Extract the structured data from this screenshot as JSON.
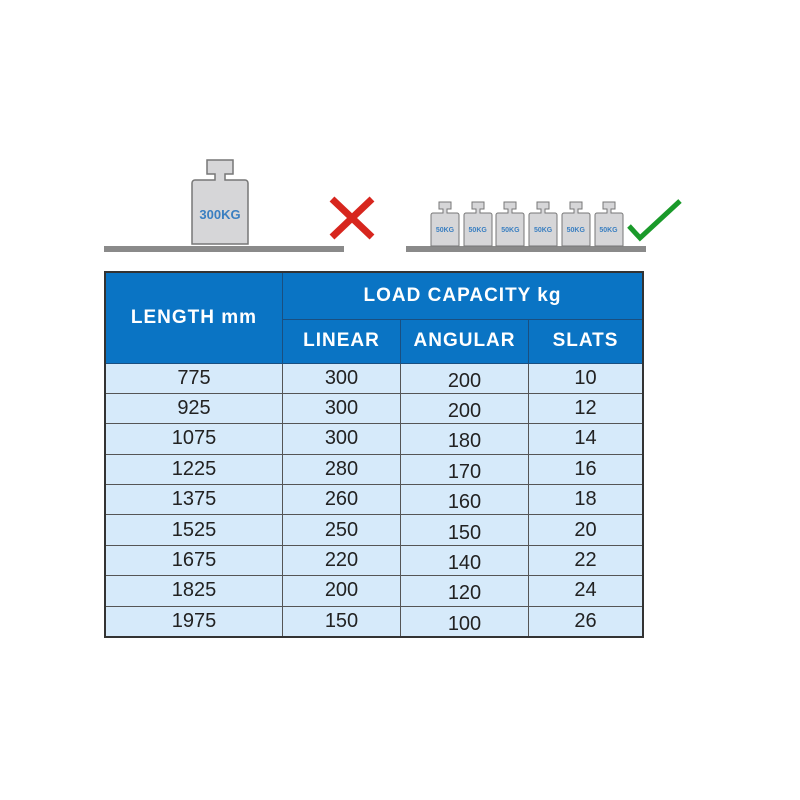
{
  "illustration": {
    "wrong": {
      "weight_label": "300KG",
      "icon": "red-x-icon",
      "color": "#d7261e"
    },
    "right": {
      "weight_labels": [
        "50KG",
        "50KG",
        "50KG",
        "50KG",
        "50KG",
        "50KG"
      ],
      "icon": "green-check-icon",
      "color": "#1a9a2a"
    }
  },
  "table": {
    "header": {
      "length": "LENGTH mm",
      "load_capacity": "LOAD CAPACITY kg",
      "linear": "LINEAR",
      "angular": "ANGULAR",
      "slats": "SLATS"
    },
    "header_color": "#0a74c4",
    "rows": [
      [
        "775",
        "300",
        "200",
        "10"
      ],
      [
        "925",
        "300",
        "200",
        "12"
      ],
      [
        "1075",
        "300",
        "180",
        "14"
      ],
      [
        "1225",
        "280",
        "170",
        "16"
      ],
      [
        "1375",
        "260",
        "160",
        "18"
      ],
      [
        "1525",
        "250",
        "150",
        "20"
      ],
      [
        "1675",
        "220",
        "140",
        "22"
      ],
      [
        "1825",
        "200",
        "120",
        "24"
      ],
      [
        "1975",
        "150",
        "100",
        "26"
      ]
    ]
  }
}
